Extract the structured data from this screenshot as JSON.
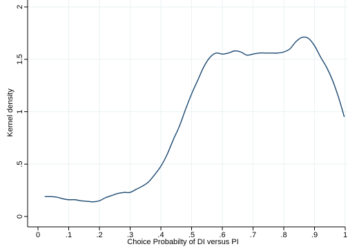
{
  "chart_data": {
    "type": "line",
    "title": "",
    "xlabel": "Choice Probabilty of DI versus PI",
    "ylabel": "Kernel density",
    "xlim": [
      0,
      1
    ],
    "ylim": [
      0,
      2
    ],
    "grid": true,
    "x_ticks": [
      {
        "value": 0,
        "label": "0"
      },
      {
        "value": 0.1,
        "label": ".1"
      },
      {
        "value": 0.2,
        "label": ".2"
      },
      {
        "value": 0.3,
        "label": ".3"
      },
      {
        "value": 0.4,
        "label": ".4"
      },
      {
        "value": 0.5,
        "label": ".5"
      },
      {
        "value": 0.6,
        "label": ".6"
      },
      {
        "value": 0.7,
        "label": ".7"
      },
      {
        "value": 0.8,
        "label": ".8"
      },
      {
        "value": 0.9,
        "label": ".9"
      },
      {
        "value": 1,
        "label": "1"
      }
    ],
    "y_ticks": [
      {
        "value": 0,
        "label": "0"
      },
      {
        "value": 0.5,
        "label": ".5"
      },
      {
        "value": 1,
        "label": "1"
      },
      {
        "value": 1.5,
        "label": "1.5"
      },
      {
        "value": 2,
        "label": "2"
      }
    ],
    "series": [
      {
        "color": "#1a476f",
        "x": [
          0.022,
          0.04,
          0.06,
          0.08,
          0.1,
          0.12,
          0.14,
          0.16,
          0.18,
          0.2,
          0.22,
          0.24,
          0.26,
          0.28,
          0.3,
          0.32,
          0.34,
          0.36,
          0.38,
          0.4,
          0.42,
          0.44,
          0.46,
          0.48,
          0.5,
          0.52,
          0.54,
          0.56,
          0.58,
          0.6,
          0.62,
          0.64,
          0.66,
          0.68,
          0.7,
          0.72,
          0.74,
          0.76,
          0.78,
          0.8,
          0.82,
          0.84,
          0.86,
          0.88,
          0.9,
          0.92,
          0.94,
          0.96,
          0.98,
          0.997
        ],
        "y": [
          0.19,
          0.19,
          0.185,
          0.17,
          0.16,
          0.16,
          0.15,
          0.145,
          0.14,
          0.15,
          0.18,
          0.2,
          0.22,
          0.23,
          0.23,
          0.26,
          0.29,
          0.33,
          0.4,
          0.48,
          0.59,
          0.73,
          0.86,
          1.02,
          1.17,
          1.3,
          1.43,
          1.52,
          1.56,
          1.55,
          1.56,
          1.58,
          1.57,
          1.54,
          1.55,
          1.56,
          1.56,
          1.56,
          1.56,
          1.57,
          1.6,
          1.67,
          1.71,
          1.7,
          1.63,
          1.52,
          1.42,
          1.29,
          1.12,
          0.95
        ]
      }
    ]
  }
}
